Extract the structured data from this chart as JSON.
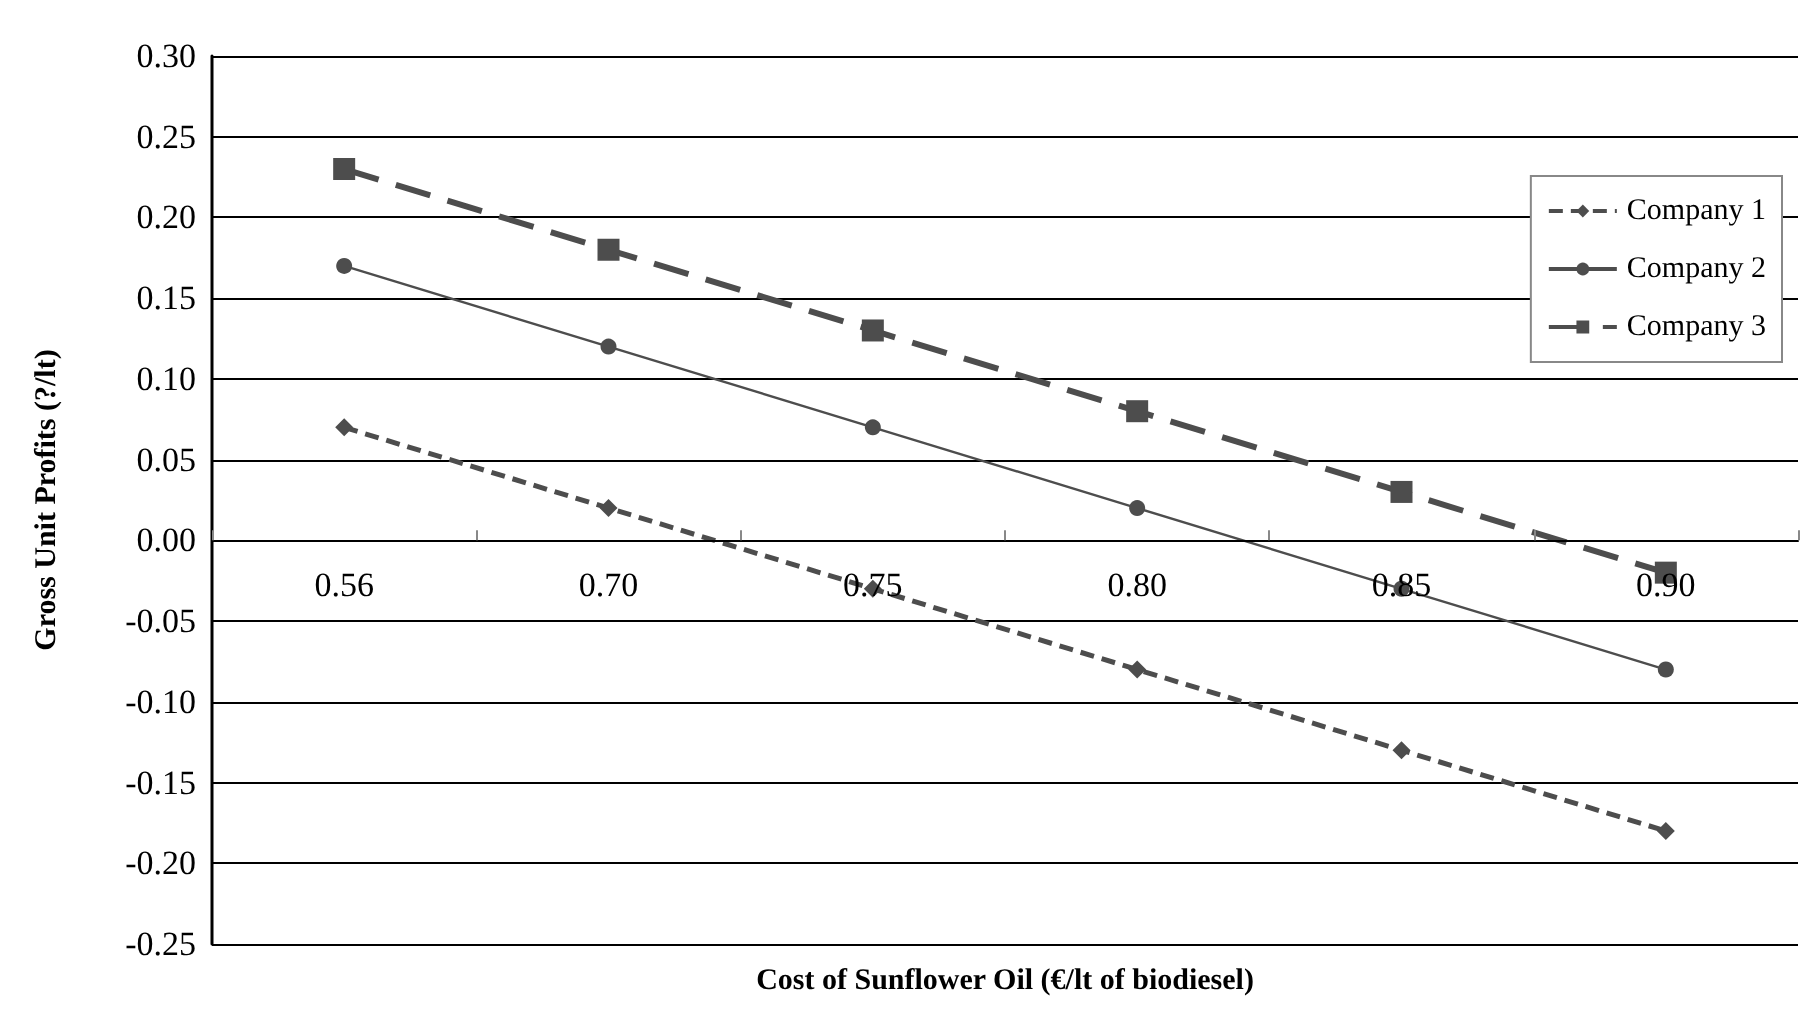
{
  "chart_data": {
    "type": "line",
    "xlabel": "Cost of Sunflower Oil (€/lt of biodiesel)",
    "ylabel": "Gross Unit Profits (?/lt)",
    "categories": [
      "0.56",
      "0.70",
      "0.75",
      "0.80",
      "0.85",
      "0.90"
    ],
    "series": [
      {
        "name": "Company 1",
        "color": "#4d4d4d",
        "marker": "diamond",
        "line_style": "dashed",
        "values": [
          0.07,
          0.02,
          -0.03,
          -0.08,
          -0.13,
          -0.18
        ]
      },
      {
        "name": "Company 2",
        "color": "#4d4d4d",
        "marker": "circle",
        "line_style": "solid",
        "values": [
          0.17,
          0.12,
          0.07,
          0.02,
          -0.03,
          -0.08
        ]
      },
      {
        "name": "Company 3",
        "color": "#4d4d4d",
        "marker": "square",
        "line_style": "dashed",
        "values": [
          0.23,
          0.18,
          0.13,
          0.08,
          0.03,
          -0.02
        ]
      }
    ],
    "ylim": [
      -0.25,
      0.3
    ],
    "yticks": [
      {
        "value": -0.25,
        "label": "-0.25"
      },
      {
        "value": -0.2,
        "label": "-0.20"
      },
      {
        "value": -0.15,
        "label": "-0.15"
      },
      {
        "value": -0.1,
        "label": "-0.10"
      },
      {
        "value": -0.05,
        "label": "-0.05"
      },
      {
        "value": 0,
        "label": "0.00"
      },
      {
        "value": 0.05,
        "label": "0.05"
      },
      {
        "value": 0.1,
        "label": "0.10"
      },
      {
        "value": 0.15,
        "label": "0.15"
      },
      {
        "value": 0.2,
        "label": "0.20"
      },
      {
        "value": 0.25,
        "label": "0.25"
      },
      {
        "value": 0.3,
        "label": "0.30"
      }
    ],
    "grid": "y",
    "legend": "right"
  }
}
